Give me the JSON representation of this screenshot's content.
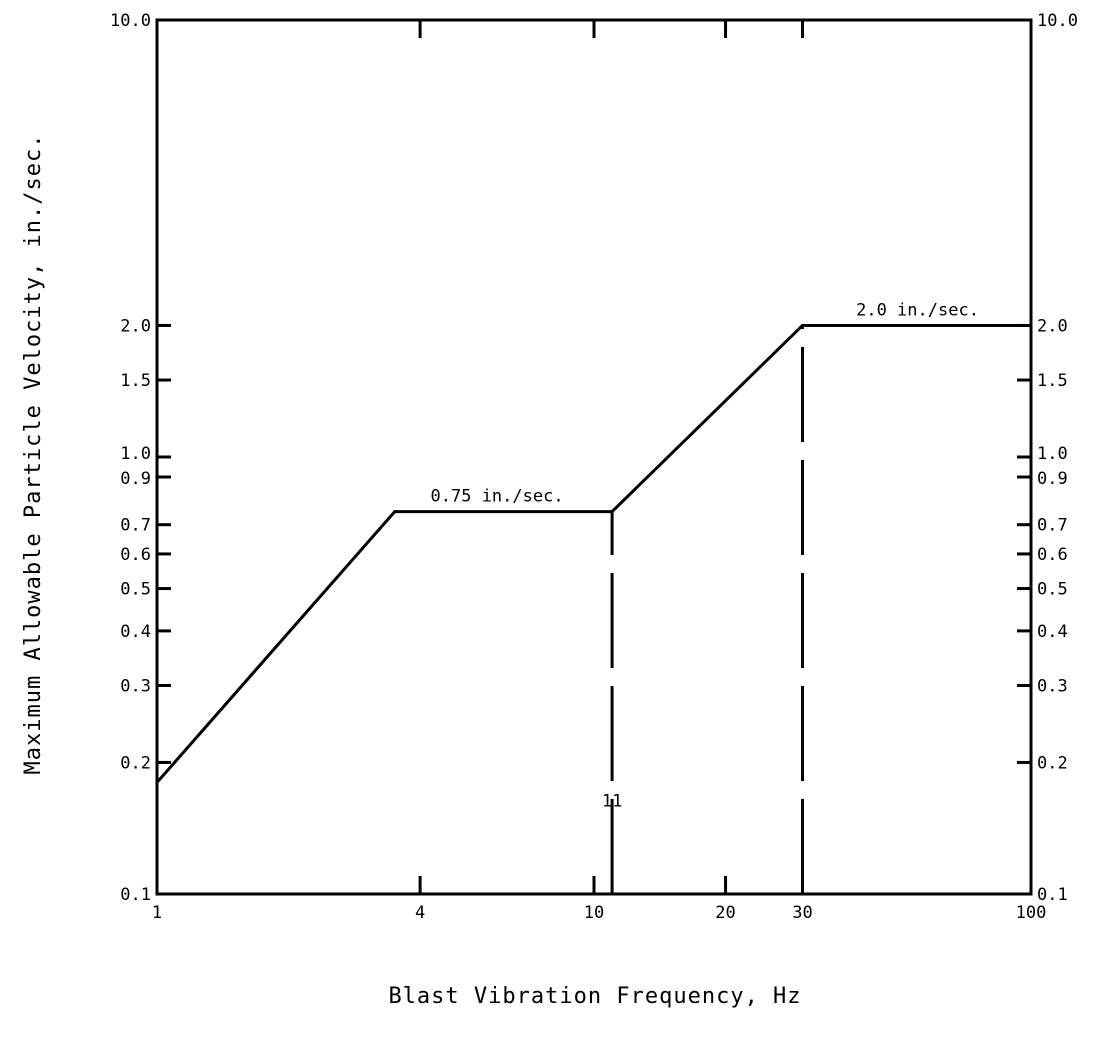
{
  "chart_data": {
    "type": "line",
    "xlabel": "Blast Vibration Frequency, Hz",
    "ylabel": "Maximum Allowable Particle Velocity, in./sec.",
    "xscale": "log",
    "yscale": "log",
    "xlim": [
      1,
      100
    ],
    "ylim": [
      0.1,
      10.0
    ],
    "grid": false,
    "x_ticks": [
      {
        "value": 1,
        "label": "1"
      },
      {
        "value": 4,
        "label": "4"
      },
      {
        "value": 10,
        "label": "10"
      },
      {
        "value": 20,
        "label": "20"
      },
      {
        "value": 30,
        "label": "30"
      },
      {
        "value": 100,
        "label": "100"
      }
    ],
    "y_ticks": [
      {
        "value": 0.1,
        "label": "0.1"
      },
      {
        "value": 0.2,
        "label": "0.2"
      },
      {
        "value": 0.3,
        "label": "0.3"
      },
      {
        "value": 0.4,
        "label": "0.4"
      },
      {
        "value": 0.5,
        "label": "0.5"
      },
      {
        "value": 0.6,
        "label": "0.6"
      },
      {
        "value": 0.7,
        "label": "0.7"
      },
      {
        "value": 0.9,
        "label": "0.9"
      },
      {
        "value": 1.0,
        "label": "1.0"
      },
      {
        "value": 1.5,
        "label": "1.5"
      },
      {
        "value": 2.0,
        "label": "2.0"
      },
      {
        "value": 10.0,
        "label": "10.0"
      }
    ],
    "series": [
      {
        "points": [
          {
            "x": 1,
            "y": 0.18
          },
          {
            "x": 3.5,
            "y": 0.75
          },
          {
            "x": 11,
            "y": 0.75
          },
          {
            "x": 30,
            "y": 2.0
          },
          {
            "x": 100,
            "y": 2.0
          }
        ]
      }
    ],
    "reference_lines": [
      {
        "x": 11,
        "y_from": 0.1,
        "y_to": 0.75,
        "style": "dashed"
      },
      {
        "x": 30,
        "y_from": 0.1,
        "y_to": 2.0,
        "style": "dashed"
      }
    ],
    "annotations": [
      {
        "text": "0.75 in./sec.",
        "x": 6,
        "y": 0.75
      },
      {
        "text": "2.0 in./sec.",
        "x": 55,
        "y": 2.0
      },
      {
        "text": "11",
        "x": 11,
        "y": 0.18
      }
    ]
  }
}
